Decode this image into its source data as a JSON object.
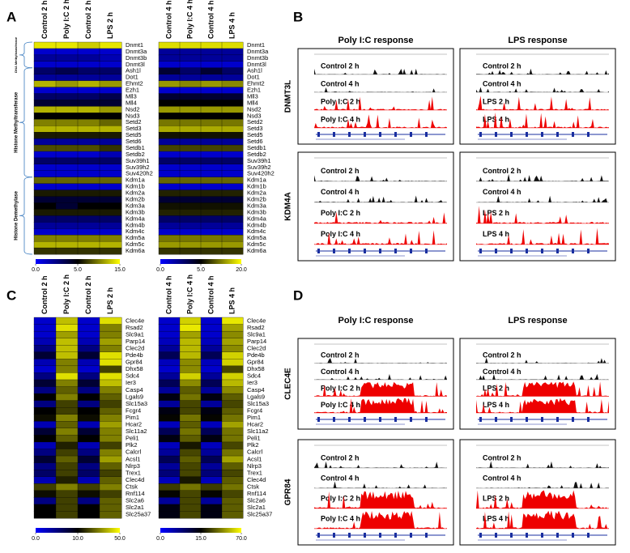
{
  "panel_labels": [
    "A",
    "B",
    "C",
    "D"
  ],
  "groups": [
    "DNA Methyltransferase",
    "Histone Methyltransferase",
    "Histone Demethylase"
  ],
  "browser_panels": [
    {
      "column_titles": [
        "Poly I:C response",
        "LPS response"
      ],
      "genes": [
        {
          "name": "DNMT3L",
          "tracks": [
            [
              "Control 2 h",
              "Control 4 h",
              "Poly I:C 2 h",
              "Poly I:C 4 h"
            ],
            [
              "Control 2 h",
              "Control 4 h",
              "LPS 2 h",
              "LPS 4 h"
            ]
          ]
        },
        {
          "name": "KDM4A",
          "tracks": [
            [
              "Control 2 h",
              "Control 4 h",
              "Poly I:C 2 h",
              "Poly I:C 4 h"
            ],
            [
              "Control 2 h",
              "Control 4 h",
              "LPS 2 h",
              "LPS 4 h"
            ]
          ]
        }
      ]
    },
    {
      "column_titles": [
        "Poly I:C response",
        "LPS response"
      ],
      "genes": [
        {
          "name": "CLEC4E",
          "tracks": [
            [
              "Control 2 h",
              "Control 4 h",
              "Poly I:C 2 h",
              "Poly I:C 4 h"
            ],
            [
              "Control 2 h",
              "Control 4 h",
              "LPS 2 h",
              "LPS 4 h"
            ]
          ]
        },
        {
          "name": "GPR84",
          "tracks": [
            [
              "Control 2 h",
              "Control 4 h",
              "Poly I:C 2 h",
              "Poly I:C 4 h"
            ],
            [
              "Control 2 h",
              "Control 4 h",
              "LPS 2 h",
              "LPS 4 h"
            ]
          ]
        }
      ]
    }
  ],
  "chart_data": [
    {
      "type": "heatmap",
      "columns": [
        "Control 2 h",
        "Poly I:C 2 h",
        "Control 2 h",
        "LPS 2 h"
      ],
      "rows": [
        "Dnmt1",
        "Dnmt3a",
        "Dnmt3b",
        "Dnmt3l",
        "Ash1l",
        "Dot1",
        "Ehmt2",
        "Ezh1",
        "Mll3",
        "Mll4",
        "Nsd2",
        "Nsd3",
        "Setd2",
        "Setd3",
        "Setd5",
        "Setd6",
        "Setdb1",
        "Setdb2",
        "Suv39h1",
        "Suv39h2",
        "Suv420h2",
        "Kdm1a",
        "Kdm1b",
        "Kdm2a",
        "Kdm2b",
        "Kdm3a",
        "Kdm3b",
        "Kdm4a",
        "Kdm4b",
        "Kdm4c",
        "Kdm5a",
        "Kdm5c",
        "Kdm6a"
      ],
      "values": [
        [
          14,
          14,
          13,
          14
        ],
        [
          1,
          1,
          1,
          1
        ],
        [
          2,
          2,
          2,
          1.5
        ],
        [
          1,
          1,
          1,
          1
        ],
        [
          3,
          3.5,
          3,
          3
        ],
        [
          2,
          2,
          2,
          2
        ],
        [
          12,
          11,
          12,
          11
        ],
        [
          1,
          1,
          1,
          1
        ],
        [
          3,
          3,
          3,
          3.5
        ],
        [
          4,
          4,
          4,
          4
        ],
        [
          12,
          12,
          12,
          11
        ],
        [
          5,
          5,
          5,
          5
        ],
        [
          10,
          10,
          10,
          9
        ],
        [
          12,
          12,
          12,
          12
        ],
        [
          6,
          6,
          6,
          6
        ],
        [
          2,
          2,
          2,
          2
        ],
        [
          8,
          8,
          8,
          7
        ],
        [
          1,
          1,
          1,
          1.5
        ],
        [
          3,
          3,
          3,
          3
        ],
        [
          1,
          1,
          1,
          1
        ],
        [
          1,
          1,
          1,
          1
        ],
        [
          9,
          9,
          9,
          9
        ],
        [
          1,
          1,
          1,
          1
        ],
        [
          6,
          6,
          6,
          6
        ],
        [
          4,
          4,
          4,
          4
        ],
        [
          5,
          4,
          5,
          5
        ],
        [
          6,
          6,
          6,
          6
        ],
        [
          3,
          3,
          3,
          3
        ],
        [
          2,
          2,
          2,
          2
        ],
        [
          1,
          1,
          1,
          1
        ],
        [
          10,
          10,
          10,
          10
        ],
        [
          12,
          12,
          12,
          12
        ],
        [
          7,
          7,
          7,
          7
        ]
      ],
      "clim": [
        0,
        15
      ],
      "colorbar_ticks": [
        {
          "value": 0,
          "label": "0.0"
        },
        {
          "value": 5,
          "label": "5.0"
        },
        {
          "value": 15,
          "label": "15.0"
        }
      ],
      "colors": [
        "#0000ff",
        "#000000",
        "#ffff00"
      ]
    },
    {
      "type": "heatmap",
      "columns": [
        "Control 4 h",
        "Poly I:C 4 h",
        "Control 4 h",
        "LPS 4 h"
      ],
      "rows": [
        "Dnmt1",
        "Dnmt3a",
        "Dnmt3b",
        "Dnmt3l",
        "Ash1l",
        "Dot1",
        "Ehmt2",
        "Ezh1",
        "Mll3",
        "Mll4",
        "Nsd2",
        "Nsd3",
        "Setd2",
        "Setd3",
        "Setd5",
        "Setd6",
        "Setdb1",
        "Setdb2",
        "Suv39h1",
        "Suv39h2",
        "Suv420h2",
        "Kdm1a",
        "Kdm1b",
        "Kdm2a",
        "Kdm2b",
        "Kdm3a",
        "Kdm3b",
        "Kdm4a",
        "Kdm4b",
        "Kdm4c",
        "Kdm5a",
        "Kdm5c",
        "Kdm6a"
      ],
      "values": [
        [
          18,
          18,
          18,
          18
        ],
        [
          2,
          2,
          2,
          2
        ],
        [
          2,
          2,
          2,
          2
        ],
        [
          1,
          1,
          1,
          1
        ],
        [
          4,
          3,
          4,
          3
        ],
        [
          2,
          2,
          2,
          2
        ],
        [
          14,
          13,
          14,
          13
        ],
        [
          1,
          1,
          1,
          1
        ],
        [
          4,
          4,
          4,
          4
        ],
        [
          5,
          5,
          5,
          5
        ],
        [
          14,
          14,
          14,
          14
        ],
        [
          5,
          5,
          5,
          5
        ],
        [
          12,
          12,
          12,
          12
        ],
        [
          15,
          15,
          15,
          15
        ],
        [
          6,
          6,
          6,
          6
        ],
        [
          2,
          2,
          2,
          2
        ],
        [
          9,
          9,
          9,
          9
        ],
        [
          1,
          1,
          1,
          1
        ],
        [
          3,
          3,
          3,
          3
        ],
        [
          1,
          1,
          1,
          1
        ],
        [
          1,
          1,
          1,
          1
        ],
        [
          11,
          11,
          11,
          11
        ],
        [
          1,
          1,
          1,
          1
        ],
        [
          7,
          7,
          7,
          7
        ],
        [
          4,
          4,
          4,
          4
        ],
        [
          6,
          6,
          6,
          6
        ],
        [
          7,
          7,
          7,
          7
        ],
        [
          3,
          3,
          3,
          3
        ],
        [
          2,
          2,
          2,
          2
        ],
        [
          1,
          1,
          1,
          1
        ],
        [
          12,
          12,
          12,
          12
        ],
        [
          14,
          14,
          14,
          14
        ],
        [
          8,
          8,
          8,
          8
        ]
      ],
      "clim": [
        0,
        20
      ],
      "colorbar_ticks": [
        {
          "value": 0,
          "label": "0.0"
        },
        {
          "value": 5,
          "label": "5.0"
        },
        {
          "value": 20,
          "label": "20.0"
        }
      ],
      "colors": [
        "#0000ff",
        "#000000",
        "#ffff00"
      ]
    },
    {
      "type": "heatmap",
      "columns": [
        "Control 2 h",
        "Poly I:C 2 h",
        "Control 2 h",
        "LPS 2 h"
      ],
      "rows": [
        "Clec4e",
        "Rsad2",
        "Slc9a1",
        "Parp14",
        "Clec2d",
        "Pde4b",
        "Gpr84",
        "Dhx58",
        "Sdc4",
        "Ier3",
        "Casp4",
        "Lgals9",
        "Slc15a3",
        "Fcgr4",
        "Pim1",
        "Hcar2",
        "Slc11a2",
        "Peli1",
        "Plk2",
        "Calcrl",
        "Acsl1",
        "Nlrp3",
        "Trex1",
        "Clec4d",
        "Ctsk",
        "Rnf114",
        "Slc2a6",
        "Slc2a1",
        "Slc25a37"
      ],
      "values": [
        [
          2,
          40,
          2,
          45
        ],
        [
          2,
          45,
          2,
          30
        ],
        [
          2,
          35,
          2,
          30
        ],
        [
          3,
          40,
          3,
          35
        ],
        [
          5,
          40,
          5,
          30
        ],
        [
          8,
          40,
          8,
          45
        ],
        [
          3,
          30,
          3,
          45
        ],
        [
          2,
          30,
          2,
          20
        ],
        [
          5,
          45,
          5,
          45
        ],
        [
          8,
          30,
          8,
          40
        ],
        [
          5,
          25,
          5,
          30
        ],
        [
          10,
          30,
          10,
          25
        ],
        [
          5,
          20,
          5,
          20
        ],
        [
          10,
          20,
          10,
          25
        ],
        [
          12,
          30,
          12,
          30
        ],
        [
          3,
          25,
          3,
          35
        ],
        [
          8,
          30,
          8,
          30
        ],
        [
          10,
          25,
          10,
          30
        ],
        [
          3,
          15,
          3,
          20
        ],
        [
          5,
          20,
          5,
          30
        ],
        [
          8,
          25,
          8,
          35
        ],
        [
          5,
          20,
          5,
          25
        ],
        [
          6,
          20,
          6,
          20
        ],
        [
          3,
          15,
          3,
          25
        ],
        [
          20,
          30,
          20,
          30
        ],
        [
          12,
          20,
          12,
          20
        ],
        [
          5,
          20,
          5,
          25
        ],
        [
          10,
          20,
          10,
          25
        ],
        [
          10,
          20,
          10,
          25
        ]
      ],
      "clim": [
        0,
        50
      ],
      "colorbar_ticks": [
        {
          "value": 0,
          "label": "0.0"
        },
        {
          "value": 10,
          "label": "10.0"
        },
        {
          "value": 50,
          "label": "50.0"
        }
      ],
      "colors": [
        "#0000ff",
        "#000000",
        "#ffff00"
      ]
    },
    {
      "type": "heatmap",
      "columns": [
        "Control 4 h",
        "Poly I:C 4 h",
        "Control 4 h",
        "LPS 4 h"
      ],
      "rows": [
        "Clec4e",
        "Rsad2",
        "Slc9a1",
        "Parp14",
        "Clec2d",
        "Pde4b",
        "Gpr84",
        "Dhx58",
        "Sdc4",
        "Ier3",
        "Casp4",
        "Lgals9",
        "Slc15a3",
        "Fcgr4",
        "Pim1",
        "Hcar2",
        "Slc11a2",
        "Peli1",
        "Plk2",
        "Calcrl",
        "Acsl1",
        "Nlrp3",
        "Trex1",
        "Clec4d",
        "Ctsk",
        "Rnf114",
        "Slc2a6",
        "Slc2a1",
        "Slc25a37"
      ],
      "values": [
        [
          3,
          60,
          3,
          65
        ],
        [
          3,
          65,
          3,
          50
        ],
        [
          3,
          50,
          3,
          45
        ],
        [
          4,
          55,
          4,
          50
        ],
        [
          6,
          55,
          6,
          45
        ],
        [
          10,
          55,
          10,
          60
        ],
        [
          4,
          45,
          4,
          60
        ],
        [
          3,
          45,
          3,
          30
        ],
        [
          6,
          60,
          6,
          60
        ],
        [
          10,
          45,
          10,
          55
        ],
        [
          6,
          35,
          6,
          45
        ],
        [
          14,
          40,
          14,
          35
        ],
        [
          6,
          30,
          6,
          30
        ],
        [
          14,
          30,
          14,
          35
        ],
        [
          16,
          40,
          16,
          40
        ],
        [
          4,
          35,
          4,
          50
        ],
        [
          10,
          40,
          10,
          40
        ],
        [
          14,
          35,
          14,
          40
        ],
        [
          4,
          20,
          4,
          30
        ],
        [
          6,
          30,
          6,
          40
        ],
        [
          10,
          35,
          10,
          50
        ],
        [
          6,
          30,
          6,
          35
        ],
        [
          8,
          30,
          8,
          30
        ],
        [
          4,
          20,
          4,
          35
        ],
        [
          28,
          40,
          28,
          40
        ],
        [
          16,
          30,
          16,
          30
        ],
        [
          6,
          30,
          6,
          35
        ],
        [
          14,
          30,
          14,
          35
        ],
        [
          14,
          30,
          14,
          35
        ]
      ],
      "clim": [
        0,
        70
      ],
      "colorbar_ticks": [
        {
          "value": 0,
          "label": "0.0"
        },
        {
          "value": 15,
          "label": "15.0"
        },
        {
          "value": 70,
          "label": "70.0"
        }
      ],
      "colors": [
        "#0000ff",
        "#000000",
        "#ffff00"
      ]
    }
  ]
}
